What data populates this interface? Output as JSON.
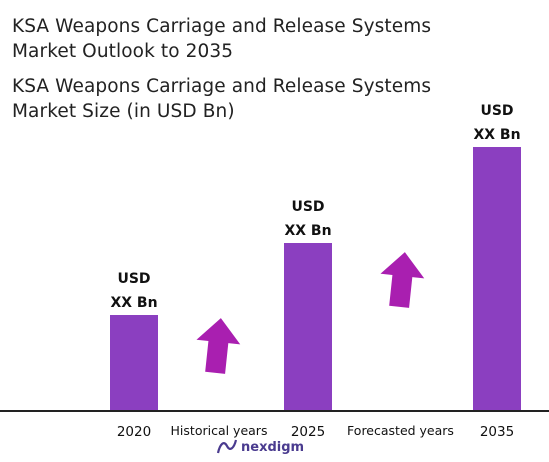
{
  "title_line1": "KSA Weapons Carriage and Release Systems",
  "title_line2": "Market Outlook to 2035",
  "subtitle_line1": "KSA Weapons Carriage and Release Systems",
  "subtitle_line2": "Market Size (in USD Bn)",
  "chart_data": {
    "type": "bar",
    "categories": [
      "2020",
      "2025",
      "2035"
    ],
    "values": [
      2.0,
      3.5,
      5.5
    ],
    "data_labels": [
      [
        "USD",
        "XX Bn"
      ],
      [
        "USD",
        "XX Bn"
      ],
      [
        "USD",
        "XX Bn"
      ]
    ],
    "ylim": [
      0,
      6
    ],
    "bar_color": "#8b3fc0",
    "annotations": [
      "Historical years",
      "Forecasted years"
    ],
    "arrow_color": "#a91fb0",
    "legend": "none",
    "grid": false
  },
  "brand": {
    "name": "nexdigm",
    "icon": "nexdigm-logo-icon"
  }
}
